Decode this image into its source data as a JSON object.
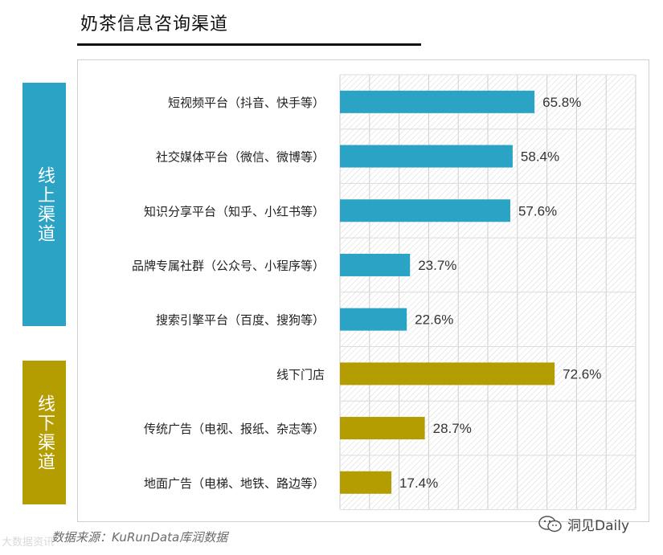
{
  "header": {
    "title": "奶茶信息咨询渠道"
  },
  "groups": {
    "online": "线上渠道",
    "offline": "线下渠道"
  },
  "source": "数据来源：KuRunData库润数据",
  "watermarks": {
    "left": "大数据资讯",
    "right": "洞见Daily"
  },
  "colors": {
    "online": "#2aa3c4",
    "offline": "#b39d00"
  },
  "chart_data": {
    "type": "bar",
    "orientation": "horizontal",
    "title": "奶茶信息咨询渠道",
    "categories": [
      "短视频平台（抖音、快手等）",
      "社交媒体平台（微信、微博等）",
      "知识分享平台（知乎、小红书等）",
      "品牌专属社群（公众号、小程序等）",
      "搜索引擎平台（百度、搜狗等）",
      "线下门店",
      "传统广告（电视、报纸、杂志等）",
      "地面广告（电梯、地铁、路边等）"
    ],
    "values": [
      65.8,
      58.4,
      57.6,
      23.7,
      22.6,
      72.6,
      28.7,
      17.4
    ],
    "value_labels": [
      "65.8%",
      "58.4%",
      "57.6%",
      "23.7%",
      "22.6%",
      "72.6%",
      "28.7%",
      "17.4%"
    ],
    "group": [
      "online",
      "online",
      "online",
      "online",
      "online",
      "offline",
      "offline",
      "offline"
    ],
    "xlim": [
      0,
      100
    ],
    "grid": true
  }
}
